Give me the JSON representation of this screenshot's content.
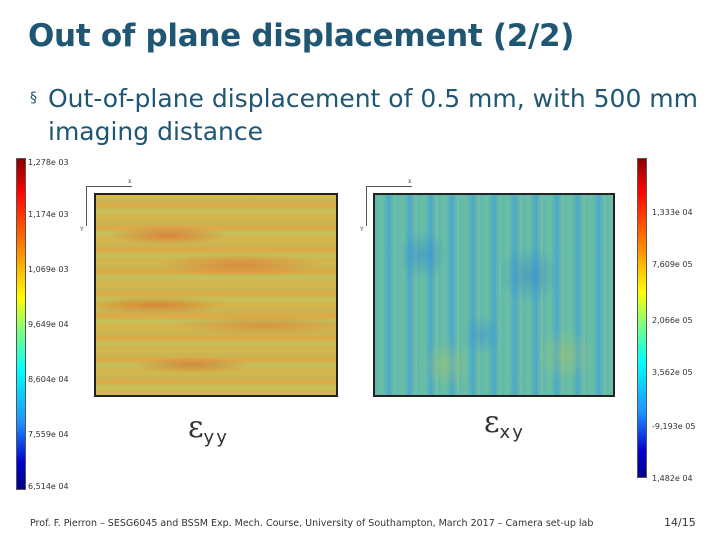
{
  "slide": {
    "title": "Out of plane displacement (2/2)",
    "bullet_marker": "§",
    "bullet_text": "Out-of-plane displacement of 0.5 mm, with 500 mm imaging distance"
  },
  "left_colorbar": {
    "labels": [
      "1,278e 03",
      "1,174e 03",
      "1,069e 03",
      "9,649e 04",
      "8,604e 04",
      "7,559e 04",
      "6,514e 04"
    ]
  },
  "right_colorbar": {
    "labels": [
      "1,333e 04",
      "7,609e 05",
      "2,066e 05",
      "3,562e 05",
      "-9,193e 05",
      "1,482e 04"
    ]
  },
  "left_map": {
    "axis_x": "x",
    "axis_y": "Y",
    "label_symbol": "ε",
    "label_sub": "yy"
  },
  "right_map": {
    "axis_x": "x",
    "axis_y": "Y",
    "label_symbol": "ε",
    "label_sub": "xy"
  },
  "footer": {
    "text": "Prof. F. Pierron – SESG6045 and BSSM Exp. Mech. Course, University of Southampton, March 2017 – Camera set-up lab",
    "page": "14/15"
  },
  "colors": {
    "title": "#1f5673",
    "text": "#333333"
  }
}
